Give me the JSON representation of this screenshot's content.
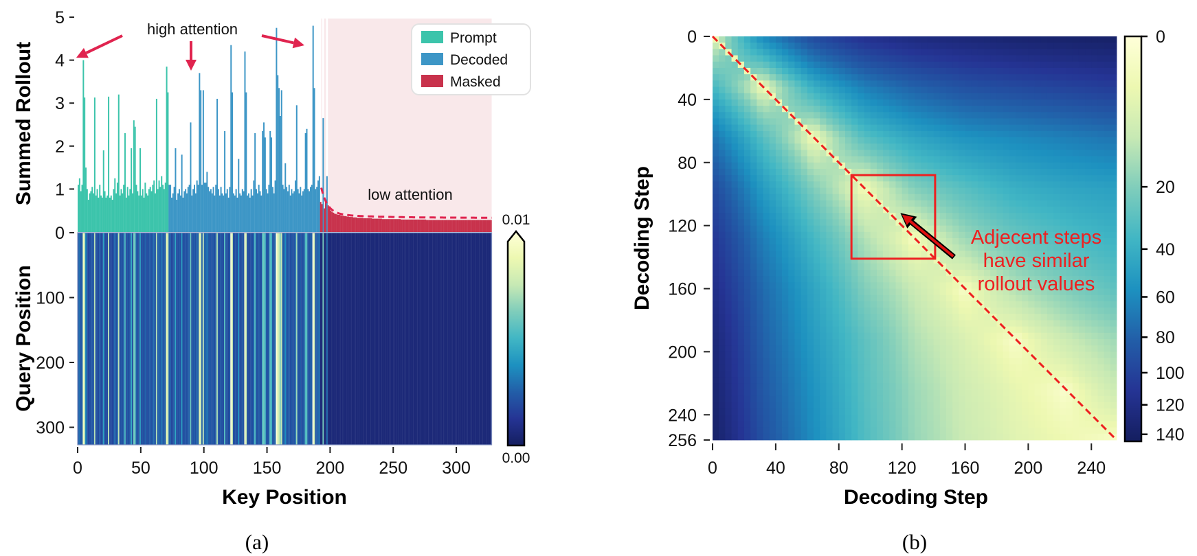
{
  "figure": {
    "caption_a": "(a)",
    "caption_b": "(b)"
  },
  "colors": {
    "prompt": "#3cc4ab",
    "decoded": "#3d96c6",
    "masked": "#c8324c",
    "masked_region": "#f9e8ea",
    "annotation_arrow": "#e0244f",
    "highlight_red": "#ee2020",
    "colormap": "YlGnBu"
  },
  "chart_data": [
    {
      "type": "bar",
      "panel": "a-top",
      "ylabel": "Summed Rollout",
      "ylim": [
        0,
        5
      ],
      "yticks": [
        1,
        2,
        3,
        4,
        5
      ],
      "xlim": [
        0,
        328
      ],
      "grid": false,
      "series": [
        {
          "name": "Prompt",
          "start": 0,
          "values": [
            1.1,
            1.25,
            0.95,
            1.1,
            4.0,
            3.13,
            1.5,
            1.0,
            0.75,
            0.9,
            0.95,
            1.05,
            0.9,
            3.13,
            0.85,
            1.0,
            0.8,
            1.1,
            0.85,
            0.8,
            1.9,
            0.95,
            0.8,
            0.85,
            3.15,
            0.8,
            0.85,
            0.75,
            1.0,
            1.25,
            0.9,
            1.15,
            3.2,
            0.85,
            1.0,
            0.9,
            1.1,
            2.3,
            0.8,
            1.05,
            0.85,
            1.0,
            1.95,
            0.9,
            2.6,
            2.45,
            1.1,
            0.95,
            0.85,
            1.95,
            0.85,
            1.0,
            0.8,
            1.15,
            0.9,
            0.85,
            1.0,
            1.05,
            0.95,
            1.1,
            1.2,
            0.9,
            3.1,
            1.0,
            1.2,
            1.05,
            1.3,
            1.1,
            1.0,
            1.15,
            3.85,
            3.25
          ]
        },
        {
          "name": "Decoded",
          "start": 72,
          "values": [
            1.1,
            1.1,
            0.8,
            0.9,
            1.05,
            1.95,
            0.75,
            0.9,
            1.0,
            0.85,
            1.8,
            0.8,
            0.95,
            1.0,
            0.9,
            1.05,
            1.1,
            2.55,
            0.85,
            1.0,
            1.1,
            0.9,
            1.2,
            1.1,
            3.7,
            3.3,
            1.1,
            3.3,
            1.15,
            1.15,
            1.4,
            1.05,
            0.95,
            1.0,
            0.9,
            1.05,
            0.85,
            1.1,
            3.1,
            1.0,
            0.85,
            1.05,
            0.9,
            0.85,
            2.35,
            0.9,
            1.0,
            0.8,
            1.05,
            4.35,
            3.25,
            0.9,
            0.85,
            1.0,
            0.8,
            1.7,
            0.9,
            0.85,
            1.0,
            0.95,
            4.2,
            3.25,
            0.85,
            0.9,
            0.8,
            1.0,
            0.85,
            1.2,
            2.3,
            1.0,
            0.9,
            1.1,
            0.95,
            0.85,
            2.35,
            2.55,
            2.2,
            1.0,
            0.9,
            1.1,
            2.35,
            2.2,
            1.05,
            0.9,
            1.2,
            4.75,
            3.65,
            3.35,
            2.7,
            3.3,
            1.1,
            1.0,
            1.6,
            1.05,
            0.95,
            1.1,
            0.85,
            1.0,
            0.9,
            0.95,
            1.2,
            2.95,
            1.0,
            0.9,
            1.05,
            0.85,
            0.95,
            1.0,
            2.3,
            2.4,
            1.0,
            0.95,
            1.05,
            1.1,
            4.8,
            3.35,
            1.0,
            1.05,
            1.2,
            1.3,
            null,
            null,
            2.65,
            null,
            null,
            1.3
          ]
        },
        {
          "name": "Masked",
          "start": 192,
          "values": [
            0.7,
            0.65,
            null,
            0.55,
            0.7,
            null,
            0.62,
            0.55,
            0.5,
            0.47,
            0.45,
            0.43,
            0.42,
            0.41,
            0.4,
            0.4,
            0.39,
            0.38,
            0.38,
            0.37,
            0.37,
            0.36,
            0.36,
            0.35,
            0.35,
            0.35,
            0.34,
            0.34,
            0.34,
            0.33,
            0.33,
            0.33,
            0.33,
            0.33,
            0.32,
            0.32,
            0.32,
            0.32,
            0.32,
            0.32,
            0.32,
            0.31,
            0.31,
            0.31,
            0.31,
            0.31,
            0.31,
            0.31,
            0.31,
            0.3,
            0.3,
            0.3,
            0.3,
            0.3,
            0.3,
            0.3,
            0.3,
            0.3,
            0.3,
            0.3,
            0.3,
            0.3,
            0.3,
            0.3,
            0.29,
            0.29,
            0.29,
            0.29,
            0.29,
            0.29,
            0.29,
            0.29,
            0.29,
            0.29,
            0.29,
            0.29,
            0.29,
            0.29,
            0.29,
            0.29,
            0.29,
            0.29,
            0.29,
            0.29,
            0.28,
            0.28,
            0.28,
            0.28,
            0.28,
            0.28,
            0.28,
            0.28,
            0.28,
            0.28,
            0.28,
            0.28,
            0.28,
            0.28,
            0.28,
            0.28,
            0.28,
            0.28,
            0.28,
            0.28,
            0.28,
            0.28,
            0.28,
            0.28,
            0.28,
            0.28,
            0.28,
            0.28,
            0.28,
            0.28,
            0.28,
            0.28,
            0.28,
            0.28,
            0.28,
            0.28,
            0.28,
            0.28,
            0.28,
            0.28,
            0.28,
            0.28,
            0.28,
            0.28,
            0.28,
            0.28,
            0.28,
            0.28,
            0.28,
            0.28,
            0.28,
            0.28
          ]
        }
      ],
      "legend": {
        "position": "top-right",
        "entries": [
          "Prompt",
          "Decoded",
          "Masked"
        ]
      },
      "annotations": {
        "high": "high attention",
        "low": "low attention"
      }
    },
    {
      "type": "heatmap",
      "panel": "a-bottom",
      "xlabel": "Key Position",
      "ylabel": "Query Position",
      "xlim": [
        0,
        328
      ],
      "ylim": [
        0,
        327
      ],
      "xticks": [
        0,
        50,
        100,
        150,
        200,
        250,
        300
      ],
      "yticks": [
        0,
        100,
        200,
        300
      ],
      "colorbar": {
        "range": [
          0,
          0.01
        ],
        "min_label": "0.00",
        "max_label": "0.01",
        "extend": "max",
        "colormap": "YlGnBu"
      }
    },
    {
      "type": "heatmap",
      "panel": "b",
      "xlabel": "Decoding Step",
      "ylabel": "Decoding Step",
      "xlim": [
        0,
        256
      ],
      "ylim": [
        0,
        256
      ],
      "xticks": [
        0,
        40,
        80,
        120,
        160,
        200,
        240
      ],
      "yticks": [
        0,
        40,
        80,
        120,
        160,
        200,
        240,
        256
      ],
      "grid_steps": [
        0,
        32,
        64,
        96,
        128,
        160,
        192,
        224,
        256
      ],
      "values": [
        [
          0,
          60,
          95,
          115,
          125,
          130,
          135,
          138,
          140
        ],
        [
          35,
          0,
          40,
          65,
          80,
          90,
          95,
          100,
          105
        ],
        [
          70,
          30,
          0,
          30,
          45,
          55,
          60,
          65,
          70
        ],
        [
          95,
          50,
          20,
          0,
          20,
          30,
          40,
          45,
          48
        ],
        [
          110,
          65,
          35,
          12,
          0,
          15,
          25,
          32,
          38
        ],
        [
          120,
          75,
          45,
          20,
          8,
          0,
          12,
          20,
          28
        ],
        [
          130,
          80,
          50,
          28,
          12,
          5,
          0,
          8,
          15
        ],
        [
          135,
          85,
          55,
          30,
          15,
          7,
          3,
          0,
          8
        ],
        [
          140,
          90,
          58,
          32,
          16,
          8,
          4,
          2,
          0
        ]
      ],
      "colorbar": {
        "range": [
          0,
          145
        ],
        "ticks": [
          0,
          20,
          40,
          60,
          80,
          100,
          120,
          140
        ],
        "scale": "sqrt",
        "colormap": "YlGnBu",
        "reversed_axis": true
      },
      "diagonal": "dashed",
      "highlight_box": {
        "x": [
          88,
          141
        ],
        "y": [
          88,
          141
        ]
      },
      "arrow": {
        "from": [
          153,
          140
        ],
        "to": [
          119,
          112
        ]
      },
      "annotation_lines": [
        "Adjecent steps",
        "have similar",
        "rollout values"
      ]
    }
  ]
}
